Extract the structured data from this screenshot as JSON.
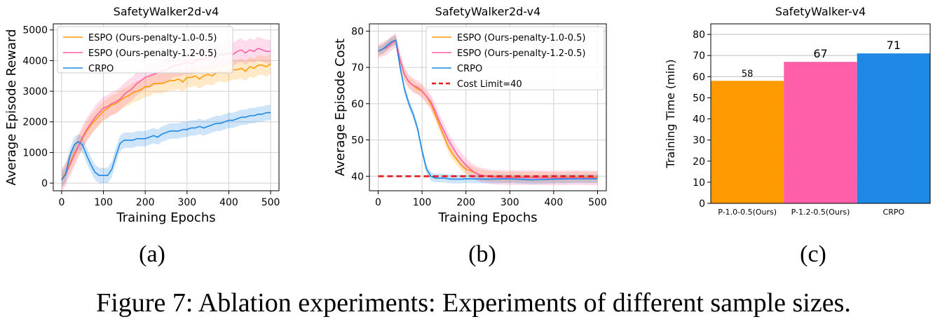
{
  "caption": "Figure 7: Ablation experiments: Experiments of different sample sizes.",
  "panels": [
    {
      "label": "(a)"
    },
    {
      "label": "(b)"
    },
    {
      "label": "(c)"
    }
  ],
  "colors": {
    "espo_1_0": "#ff9a00",
    "espo_1_2": "#ff5fa8",
    "crpo": "#1e88e5",
    "cost_limit": "#e31a1c"
  },
  "chart_data": [
    {
      "type": "line",
      "title": "SafetyWalker2d-v4",
      "xlabel": "Training Epochs",
      "ylabel": "Average Episode Reward",
      "xlim": [
        -20,
        520
      ],
      "ylim": [
        -250,
        5200
      ],
      "xticks": [
        0,
        100,
        200,
        300,
        400,
        500
      ],
      "yticks": [
        0,
        1000,
        2000,
        3000,
        4000,
        5000
      ],
      "grid": true,
      "legend_position": "upper-left",
      "series": [
        {
          "name": "ESPO (Ours-penalty-1.0-0.5)",
          "color": "#ff9a00",
          "x": [
            0,
            10,
            20,
            30,
            40,
            50,
            60,
            70,
            80,
            90,
            100,
            110,
            120,
            130,
            140,
            150,
            160,
            170,
            180,
            190,
            200,
            210,
            220,
            230,
            240,
            250,
            260,
            270,
            280,
            290,
            300,
            310,
            320,
            330,
            340,
            350,
            360,
            370,
            380,
            390,
            400,
            410,
            420,
            430,
            440,
            450,
            460,
            470,
            480,
            490,
            500
          ],
          "y": [
            100,
            350,
            650,
            950,
            1200,
            1450,
            1700,
            1900,
            2050,
            2200,
            2350,
            2450,
            2550,
            2600,
            2700,
            2800,
            2850,
            2950,
            3000,
            3050,
            3150,
            3150,
            3250,
            3250,
            3250,
            3300,
            3350,
            3350,
            3400,
            3300,
            3450,
            3450,
            3500,
            3400,
            3500,
            3550,
            3500,
            3600,
            3650,
            3600,
            3650,
            3700,
            3700,
            3750,
            3650,
            3800,
            3750,
            3850,
            3850,
            3800,
            3900
          ],
          "band": 320
        },
        {
          "name": "ESPO (Ours-penalty-1.2-0.5)",
          "color": "#ff5fa8",
          "x": [
            0,
            10,
            20,
            30,
            40,
            50,
            60,
            70,
            80,
            90,
            100,
            110,
            120,
            130,
            140,
            150,
            160,
            170,
            180,
            190,
            200,
            210,
            220,
            230,
            240,
            250,
            260,
            270,
            280,
            290,
            300,
            310,
            320,
            330,
            340,
            350,
            360,
            370,
            380,
            390,
            400,
            410,
            420,
            430,
            440,
            450,
            460,
            470,
            480,
            490,
            500
          ],
          "y": [
            100,
            300,
            600,
            900,
            1200,
            1500,
            1750,
            1950,
            2150,
            2300,
            2450,
            2500,
            2600,
            2650,
            2750,
            2900,
            3000,
            3100,
            3250,
            3350,
            3450,
            3500,
            3550,
            3600,
            3650,
            3700,
            3750,
            3850,
            3850,
            3900,
            3950,
            3900,
            4000,
            4050,
            4050,
            4100,
            4150,
            4100,
            4200,
            4200,
            4250,
            4200,
            4300,
            4350,
            4250,
            4350,
            4300,
            4400,
            4350,
            4300,
            4300
          ],
          "band": 380
        },
        {
          "name": "CRPO",
          "color": "#1e88e5",
          "x": [
            0,
            10,
            20,
            30,
            40,
            50,
            60,
            70,
            80,
            90,
            100,
            110,
            120,
            130,
            140,
            150,
            160,
            170,
            180,
            190,
            200,
            210,
            220,
            230,
            240,
            250,
            260,
            270,
            280,
            290,
            300,
            310,
            320,
            330,
            340,
            350,
            360,
            370,
            380,
            390,
            400,
            410,
            420,
            430,
            440,
            450,
            460,
            470,
            480,
            490,
            500
          ],
          "y": [
            100,
            300,
            900,
            1250,
            1350,
            1250,
            900,
            600,
            350,
            250,
            250,
            250,
            450,
            900,
            1300,
            1400,
            1400,
            1400,
            1450,
            1450,
            1450,
            1500,
            1550,
            1500,
            1600,
            1650,
            1700,
            1700,
            1700,
            1750,
            1750,
            1800,
            1800,
            1850,
            1800,
            1850,
            1900,
            1950,
            1950,
            2000,
            2050,
            2050,
            2100,
            2150,
            2150,
            2200,
            2200,
            2250,
            2250,
            2300,
            2300
          ],
          "band": 250
        }
      ]
    },
    {
      "type": "line",
      "title": "SafetyWalker2d-v4",
      "xlabel": "Training Epochs",
      "ylabel": "Average Episode Cost",
      "xlim": [
        -20,
        520
      ],
      "ylim": [
        36,
        82
      ],
      "xticks": [
        0,
        100,
        200,
        300,
        400,
        500
      ],
      "yticks": [
        40,
        50,
        60,
        70,
        80
      ],
      "grid": true,
      "legend_position": "upper-right",
      "series": [
        {
          "name": "ESPO (Ours-penalty-1.0-0.5)",
          "color": "#ff9a00",
          "x": [
            0,
            10,
            20,
            30,
            40,
            50,
            60,
            70,
            80,
            90,
            100,
            110,
            120,
            130,
            140,
            150,
            160,
            170,
            180,
            190,
            200,
            210,
            220,
            230,
            240,
            250,
            260,
            270,
            280,
            290,
            300,
            350,
            400,
            450,
            500
          ],
          "y": [
            74.5,
            75,
            76,
            77,
            77.5,
            72,
            68,
            66,
            65,
            64,
            63.5,
            62,
            60,
            57,
            54,
            51,
            48,
            46,
            44.5,
            43,
            42,
            41.5,
            41,
            40.5,
            40.2,
            40,
            39.8,
            40,
            39.8,
            39.7,
            39.8,
            39.7,
            39.6,
            39.8,
            39.7
          ],
          "band": 1.5
        },
        {
          "name": "ESPO (Ours-penalty-1.2-0.5)",
          "color": "#ff5fa8",
          "x": [
            0,
            10,
            20,
            30,
            40,
            50,
            60,
            70,
            80,
            90,
            100,
            110,
            120,
            130,
            140,
            150,
            160,
            170,
            180,
            190,
            200,
            210,
            220,
            230,
            240,
            250,
            260,
            270,
            280,
            290,
            300,
            350,
            400,
            450,
            500
          ],
          "y": [
            74.5,
            75,
            75.5,
            76.5,
            77.5,
            72,
            68,
            66,
            65,
            64.5,
            63.5,
            62,
            60.5,
            58,
            55,
            52.5,
            50,
            48,
            46,
            44.5,
            43,
            42,
            41,
            40.5,
            40.2,
            40,
            39.8,
            39.7,
            39.7,
            39.6,
            39.6,
            39.6,
            39.5,
            39.6,
            39.5
          ],
          "band": 2
        },
        {
          "name": "CRPO",
          "color": "#1e88e5",
          "x": [
            0,
            10,
            20,
            30,
            40,
            50,
            60,
            70,
            80,
            90,
            100,
            110,
            120,
            130,
            140,
            150,
            160,
            170,
            180,
            190,
            200,
            250,
            300,
            350,
            400,
            450,
            500
          ],
          "y": [
            74.5,
            75,
            76,
            77,
            77.5,
            70,
            64,
            60,
            57,
            53,
            47,
            42,
            40,
            39.5,
            39.5,
            39.5,
            39.3,
            39.2,
            39.2,
            39.2,
            39.3,
            39.2,
            39.3,
            39.0,
            39.2,
            39.3,
            39.3
          ],
          "band": 1.2
        },
        {
          "name": "Cost Limit=40",
          "color": "#e31a1c",
          "style": "dashed",
          "x": [
            0,
            500
          ],
          "y": [
            40,
            40
          ]
        }
      ]
    },
    {
      "type": "bar",
      "title": "SafetyWalker-v4",
      "xlabel": "",
      "ylabel": "Training Time (min)",
      "ylim": [
        0,
        85
      ],
      "yticks": [
        0,
        10,
        20,
        30,
        40,
        50,
        60,
        70,
        80
      ],
      "grid": true,
      "categories": [
        "P-1.0-0.5(Ours)",
        "P-1.2-0.5(Ours)",
        "CRPO"
      ],
      "values": [
        58,
        67,
        71
      ],
      "bar_colors": [
        "#ff9a00",
        "#ff5fa8",
        "#1e88e5"
      ],
      "data_labels": [
        "58",
        "67",
        "71"
      ]
    }
  ]
}
